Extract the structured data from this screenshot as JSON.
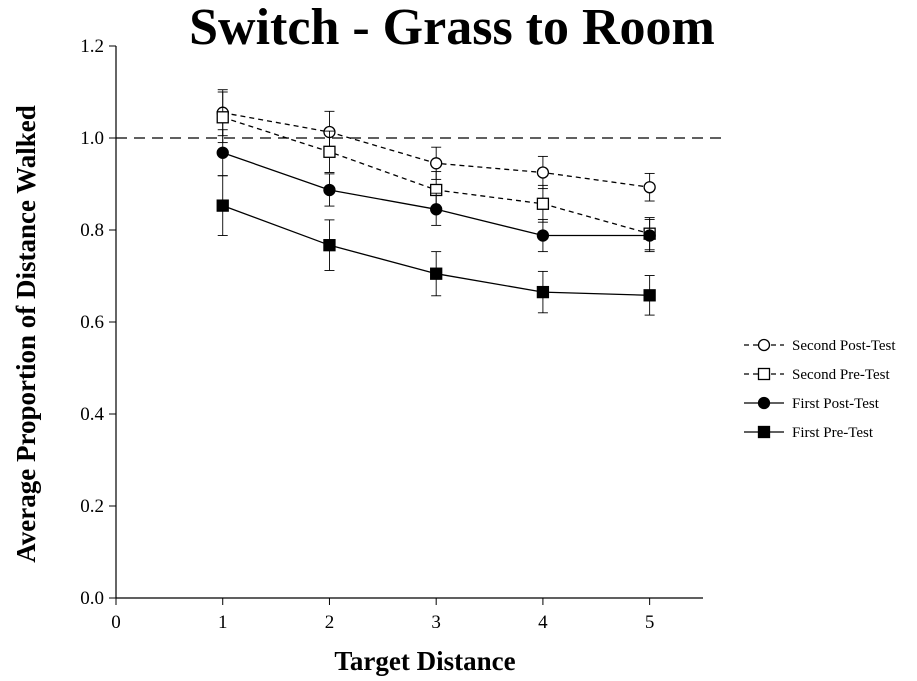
{
  "chart_data": {
    "type": "line",
    "title": "Switch - Grass to Room",
    "xlabel": "Target Distance",
    "ylabel": "Average Proportion of Distance Walked",
    "xlim": [
      0,
      5.5
    ],
    "ylim": [
      0,
      1.2
    ],
    "x_ticks": [
      "0",
      "1",
      "2",
      "3",
      "4",
      "5"
    ],
    "y_ticks": [
      "0.0",
      "0.2",
      "0.4",
      "0.6",
      "0.8",
      "1.0",
      "1.2"
    ],
    "reference_line": 1.0,
    "grid": false,
    "legend_position": "right",
    "x": [
      1,
      2,
      3,
      4,
      5
    ],
    "series": [
      {
        "name": "Second Post-Test",
        "marker": "open-circle",
        "line": "dashed",
        "values": [
          1.055,
          1.013,
          0.945,
          0.925,
          0.893
        ],
        "error": [
          0.05,
          0.045,
          0.035,
          0.035,
          0.03
        ]
      },
      {
        "name": "Second Pre-Test",
        "marker": "open-square",
        "line": "dashed",
        "values": [
          1.045,
          0.97,
          0.887,
          0.857,
          0.792
        ],
        "error": [
          0.055,
          0.045,
          0.04,
          0.04,
          0.035
        ]
      },
      {
        "name": "First Post-Test",
        "marker": "filled-circle",
        "line": "solid",
        "values": [
          0.968,
          0.887,
          0.845,
          0.788,
          0.788
        ],
        "error": [
          0.05,
          0.035,
          0.035,
          0.035,
          0.035
        ]
      },
      {
        "name": "First Pre-Test",
        "marker": "filled-square",
        "line": "solid",
        "values": [
          0.853,
          0.767,
          0.705,
          0.665,
          0.658
        ],
        "error": [
          0.065,
          0.055,
          0.048,
          0.045,
          0.043
        ]
      }
    ]
  }
}
